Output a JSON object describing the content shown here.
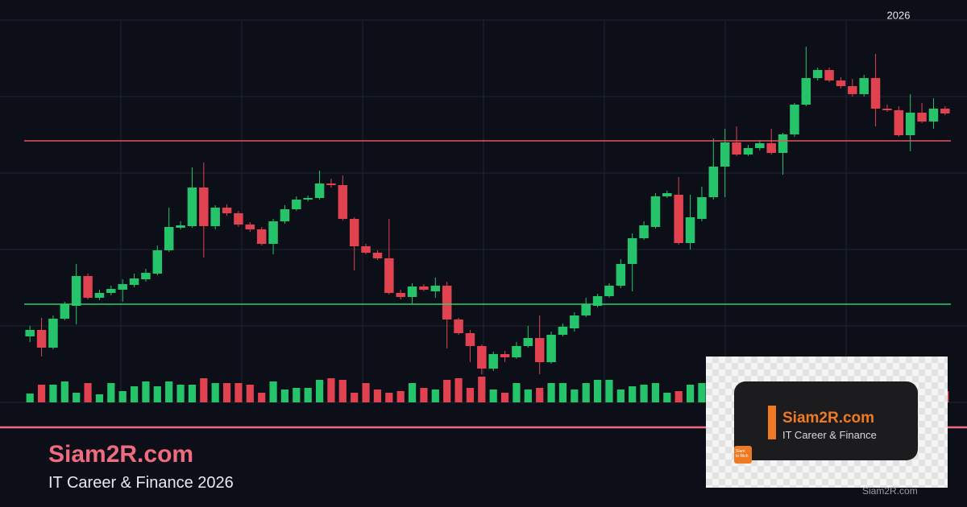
{
  "chart_data": {
    "type": "candlestick",
    "label": "2026",
    "open": [
      82,
      90,
      68,
      104,
      120,
      157,
      130,
      136,
      140,
      146,
      153,
      160,
      189,
      217,
      219,
      267,
      219,
      242,
      235,
      221,
      215,
      197,
      225,
      240,
      252,
      254,
      272,
      270,
      228,
      194,
      186,
      179,
      136,
      131,
      144,
      138,
      145,
      103,
      86,
      70,
      42,
      60,
      56,
      70,
      80,
      50,
      84,
      92,
      108,
      120,
      132,
      145,
      172,
      204,
      218,
      256,
      258,
      198,
      228,
      255,
      293,
      323,
      308,
      316,
      322,
      310,
      333,
      370,
      403,
      413,
      400,
      393,
      383,
      403,
      365,
      363,
      332,
      360,
      349,
      365
    ],
    "high": [
      95,
      105,
      108,
      125,
      172,
      160,
      140,
      145,
      153,
      160,
      166,
      195,
      242,
      225,
      292,
      298,
      245,
      246,
      238,
      224,
      218,
      228,
      245,
      256,
      257,
      288,
      278,
      282,
      230,
      197,
      189,
      228,
      140,
      148,
      147,
      155,
      150,
      105,
      90,
      72,
      63,
      64,
      75,
      95,
      108,
      88,
      98,
      112,
      130,
      135,
      148,
      178,
      210,
      225,
      260,
      263,
      280,
      258,
      268,
      328,
      340,
      343,
      320,
      326,
      340,
      335,
      372,
      442,
      416,
      416,
      404,
      402,
      407,
      433,
      370,
      368,
      383,
      372,
      378,
      368
    ],
    "low": [
      75,
      57,
      66,
      102,
      97,
      128,
      127,
      133,
      125,
      143,
      150,
      158,
      187,
      215,
      217,
      180,
      215,
      232,
      218,
      212,
      195,
      184,
      222,
      238,
      250,
      252,
      267,
      226,
      164,
      184,
      177,
      134,
      128,
      122,
      138,
      130,
      67,
      84,
      50,
      35,
      39,
      50,
      54,
      68,
      35,
      48,
      82,
      88,
      106,
      118,
      130,
      142,
      138,
      202,
      216,
      254,
      196,
      190,
      225,
      252,
      255,
      306,
      306,
      313,
      308,
      283,
      330,
      368,
      400,
      398,
      390,
      380,
      380,
      343,
      361,
      330,
      312,
      347,
      340,
      357
    ],
    "close": [
      90,
      68,
      104,
      122,
      157,
      130,
      136,
      141,
      147,
      154,
      161,
      189,
      218,
      220,
      267,
      219,
      242,
      235,
      221,
      215,
      197,
      225,
      240,
      252,
      254,
      272,
      270,
      228,
      194,
      186,
      179,
      136,
      131,
      144,
      140,
      145,
      103,
      86,
      70,
      42,
      60,
      56,
      70,
      80,
      50,
      84,
      94,
      108,
      122,
      132,
      145,
      172,
      204,
      220,
      256,
      260,
      198,
      230,
      255,
      293,
      323,
      308,
      316,
      322,
      310,
      333,
      370,
      403,
      413,
      400,
      393,
      383,
      403,
      365,
      363,
      332,
      360,
      349,
      365,
      359
    ],
    "volume": [
      11,
      22,
      22,
      26,
      12,
      24,
      10,
      24,
      14,
      20,
      26,
      20,
      26,
      22,
      22,
      30,
      24,
      24,
      24,
      22,
      12,
      26,
      16,
      18,
      18,
      28,
      30,
      28,
      12,
      24,
      16,
      12,
      14,
      24,
      18,
      16,
      28,
      30,
      18,
      32,
      16,
      12,
      24,
      16,
      18,
      24,
      24,
      16,
      24,
      28,
      28,
      16,
      20,
      22,
      24,
      12,
      14,
      22,
      24,
      24,
      22,
      14,
      20,
      22,
      20,
      26,
      22,
      24,
      26,
      22,
      24,
      20,
      22,
      24,
      20,
      18,
      20,
      20,
      20,
      14
    ],
    "ylim": [
      0,
      475
    ],
    "up_color": "#26c46a",
    "down_color": "#e0434f",
    "levels": [
      {
        "value": 325,
        "color": "#e05561"
      },
      {
        "value": 122,
        "color": "#2ecc71"
      }
    ]
  },
  "footer": {
    "brand": "Siam2R.com",
    "tagline": "IT Career & Finance 2026"
  },
  "overlay": {
    "title": "Siam2R.com",
    "subtitle": "IT Career & Finance",
    "logo": [
      "Siam",
      "to Rich"
    ],
    "watermark": "Siam2R.com"
  }
}
